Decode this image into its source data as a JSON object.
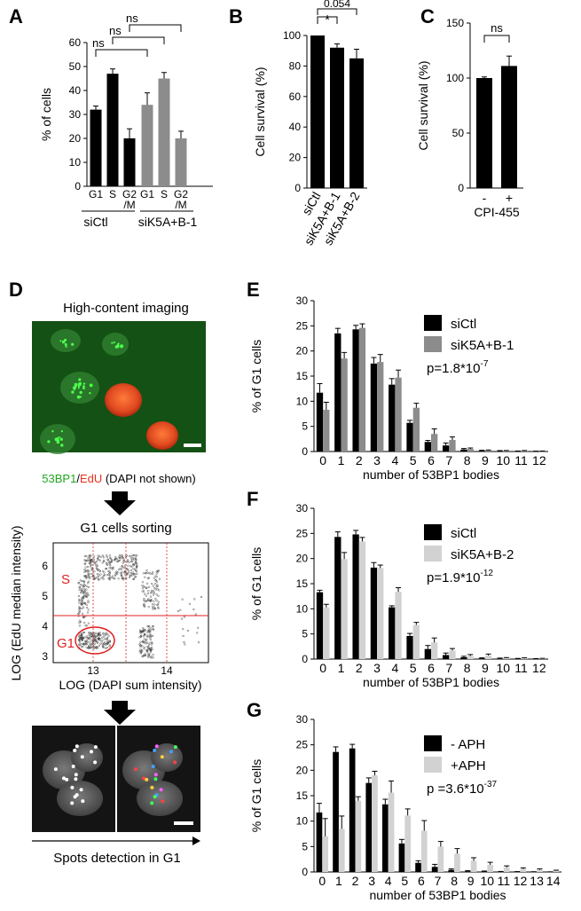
{
  "figure": {
    "panel_labels": [
      "A",
      "B",
      "C",
      "D",
      "E",
      "F",
      "G"
    ],
    "panel_d": {
      "title": "High-content imaging",
      "caption_53bp1": "53BP1",
      "caption_sep": "/",
      "caption_edu": "EdU",
      "caption_rest": " (DAPI not shown)",
      "sorting_title": "G1 cells sorting",
      "scatter_xlabel": "LOG (DAPI sum intensity)",
      "scatter_ylabel": "LOG (EdU median intensity)",
      "scatter_xticks": [
        "13",
        "14"
      ],
      "scatter_yticks": [
        "3",
        "4",
        "5",
        "6"
      ],
      "gate_s": "S",
      "gate_g1": "G1",
      "spots_caption": "Spots detection in G1"
    },
    "colors": {
      "black_bar": "#000000",
      "gray_bar": "#8c8c8c",
      "light_bar": "#d2d2d2",
      "gfp_green": "#2ecc40",
      "edu_red": "#e8321e",
      "gate_red": "#e02020"
    }
  },
  "chart_data": [
    {
      "id": "A",
      "type": "bar",
      "ylabel": "% of cells",
      "ylim": [
        0,
        60
      ],
      "yticks": [
        "0",
        "10",
        "20",
        "30",
        "40",
        "50",
        "60"
      ],
      "categories": [
        "G1",
        "S",
        "G2\n/M",
        "G1",
        "S",
        "G2\n/M"
      ],
      "tick_line1": [
        "G1",
        "S",
        "G2",
        "G1",
        "S",
        "G2"
      ],
      "tick_line2": [
        "",
        "",
        "/M",
        "",
        "",
        "/M"
      ],
      "groups": [
        "siCtl",
        "siK5A+B-1"
      ],
      "values": [
        32,
        47,
        20,
        34,
        45,
        20
      ],
      "errors": [
        1.5,
        2,
        4,
        5,
        2.5,
        3
      ],
      "bar_colors": [
        "black",
        "black",
        "black",
        "gray",
        "gray",
        "gray"
      ],
      "significance": [
        "ns",
        "ns",
        "ns"
      ]
    },
    {
      "id": "B",
      "type": "bar",
      "ylabel": "Cell survival (%)",
      "ylim": [
        0,
        100
      ],
      "yticks": [
        "0",
        "20",
        "40",
        "60",
        "80",
        "100"
      ],
      "categories": [
        "siCtl",
        "siK5A+B-1",
        "siK5A+B-2"
      ],
      "values": [
        100,
        92,
        85
      ],
      "errors": [
        0,
        2.5,
        6
      ],
      "significance": [
        "*",
        "0.054"
      ]
    },
    {
      "id": "C",
      "type": "bar",
      "ylabel": "Cell survival (%)",
      "ylim": [
        0,
        150
      ],
      "yticks": [
        "0",
        "50",
        "100",
        "150"
      ],
      "categories": [
        "-",
        "+"
      ],
      "xlabel": "CPI-455",
      "values": [
        100,
        111
      ],
      "errors": [
        1,
        9
      ],
      "significance": [
        "ns"
      ]
    },
    {
      "id": "E",
      "type": "bar",
      "ylabel": "% of G1 cells",
      "xlabel": "number of 53BP1 bodies",
      "ylim": [
        0,
        30
      ],
      "yticks": [
        "0",
        "5",
        "10",
        "15",
        "20",
        "25",
        "30"
      ],
      "categories": [
        "0",
        "1",
        "2",
        "3",
        "4",
        "5",
        "6",
        "7",
        "8",
        "9",
        "10",
        "11",
        "12"
      ],
      "series": [
        {
          "name": "siCtl",
          "color": "black",
          "values": [
            11.7,
            23.5,
            24.3,
            17.5,
            13.3,
            5.7,
            1.9,
            1.2,
            0.4,
            0.15,
            0.08,
            0.05,
            0.03
          ],
          "errors": [
            1.8,
            1,
            0.8,
            1.2,
            1.2,
            0.5,
            0.3,
            0.5,
            0.2,
            0.1,
            0.1,
            0.05,
            0.05
          ]
        },
        {
          "name": "siK5A+B-1",
          "color": "gray",
          "values": [
            8.3,
            18.5,
            24.6,
            17.8,
            14.7,
            8.7,
            3.5,
            2.3,
            0.5,
            0.2,
            0.1,
            0.1,
            0.05
          ],
          "errors": [
            1.5,
            1.2,
            0.8,
            1.5,
            1.5,
            0.9,
            1,
            0.6,
            0.2,
            0.1,
            0.1,
            0.1,
            0.05
          ]
        }
      ],
      "pvalue": "p=1.8*10",
      "pvalue_exp": "-7"
    },
    {
      "id": "F",
      "type": "bar",
      "ylabel": "% of G1 cells",
      "xlabel": "number of 53BP1 bodies",
      "ylim": [
        0,
        30
      ],
      "yticks": [
        "0",
        "5",
        "10",
        "15",
        "20",
        "25",
        "30"
      ],
      "categories": [
        "0",
        "1",
        "2",
        "3",
        "4",
        "5",
        "6",
        "7",
        "8",
        "9",
        "10",
        "11",
        "12"
      ],
      "series": [
        {
          "name": "siCtl",
          "color": "black",
          "values": [
            13.3,
            24.3,
            24.8,
            18.2,
            10.3,
            4.6,
            2,
            0.8,
            0.35,
            0.15,
            0.1,
            0.08,
            0.05
          ],
          "errors": [
            0.4,
            1,
            0.8,
            1,
            0.3,
            0.5,
            0.7,
            0.4,
            0.2,
            0.1,
            0.1,
            0.05,
            0.05
          ]
        },
        {
          "name": "siK5A+B-2",
          "color": "light",
          "values": [
            10.3,
            19.9,
            23.4,
            18.1,
            13.4,
            6.8,
            3.3,
            1.7,
            0.6,
            0.7,
            0.2,
            0.15,
            0.1
          ],
          "errors": [
            0.6,
            1.3,
            0.8,
            0.6,
            0.8,
            0.5,
            0.9,
            0.4,
            0.3,
            0.3,
            0.1,
            0.1,
            0.05
          ]
        }
      ],
      "pvalue": "p=1.9*10",
      "pvalue_exp": "-12"
    },
    {
      "id": "G",
      "type": "bar",
      "ylabel": "% of G1 cells",
      "xlabel": "number of 53BP1 bodies",
      "ylim": [
        0,
        30
      ],
      "yticks": [
        "0",
        "5",
        "10",
        "15",
        "20",
        "25",
        "30"
      ],
      "categories": [
        "0",
        "1",
        "2",
        "3",
        "4",
        "5",
        "6",
        "7",
        "8",
        "9",
        "10",
        "11",
        "12",
        "13",
        "14"
      ],
      "series": [
        {
          "name": "- APH",
          "color": "black",
          "values": [
            11.7,
            23.6,
            24.3,
            17.5,
            13.3,
            5.6,
            1.8,
            1,
            0.4,
            0.15,
            0.08,
            0.05,
            0.03,
            0.02,
            0.01
          ],
          "errors": [
            1.8,
            1,
            0.8,
            1,
            1,
            0.8,
            0.4,
            0.5,
            0.2,
            0.1,
            0.1,
            0.05,
            0.05,
            0.03,
            0.02
          ]
        },
        {
          "name": "+APH",
          "color": "light",
          "values": [
            7,
            8.5,
            14,
            19,
            15.6,
            11.1,
            8.1,
            5,
            3.6,
            2.2,
            1.4,
            0.9,
            0.6,
            0.4,
            0.25
          ],
          "errors": [
            3.5,
            2.5,
            0.8,
            0.8,
            2.3,
            1.3,
            2,
            1,
            1,
            0.6,
            0.5,
            0.3,
            0.2,
            0.2,
            0.1
          ]
        }
      ],
      "pvalue": "p =3.6*10",
      "pvalue_exp": "-37"
    }
  ]
}
